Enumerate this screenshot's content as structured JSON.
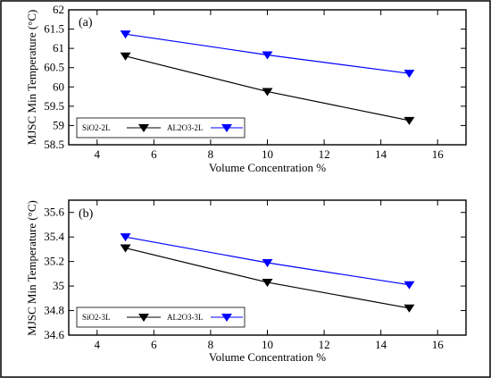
{
  "chart_data": [
    {
      "type": "line",
      "panel_label": "(a)",
      "xlabel": "Volume Concentration %",
      "ylabel": "MJSC Min Temperature (°C)",
      "xlim": [
        3,
        17
      ],
      "ylim": [
        58.5,
        62
      ],
      "xticks": [
        4,
        6,
        8,
        10,
        12,
        14,
        16
      ],
      "yticks": [
        58.5,
        59,
        59.5,
        60,
        60.5,
        61,
        61.5,
        62
      ],
      "x": [
        5,
        10,
        15
      ],
      "series": [
        {
          "name": "SiO2-2L",
          "color": "#000000",
          "values": [
            60.8,
            59.88,
            59.13
          ]
        },
        {
          "name": "AL2O3-2L",
          "color": "#0000ff",
          "values": [
            61.37,
            60.83,
            60.35
          ]
        }
      ],
      "legend": "bottom-left"
    },
    {
      "type": "line",
      "panel_label": "(b)",
      "xlabel": "Volume Concentration %",
      "ylabel": "MJSC Min Temperature (°C)",
      "xlim": [
        3,
        17
      ],
      "ylim": [
        34.6,
        35.7
      ],
      "xticks": [
        4,
        6,
        8,
        10,
        12,
        14,
        16
      ],
      "yticks": [
        34.6,
        34.8,
        35,
        35.2,
        35.4,
        35.6
      ],
      "x": [
        5,
        10,
        15
      ],
      "series": [
        {
          "name": "SiO2-3L",
          "color": "#000000",
          "values": [
            35.31,
            35.03,
            34.82
          ]
        },
        {
          "name": "AL2O3-3L",
          "color": "#0000ff",
          "values": [
            35.4,
            35.19,
            35.01
          ]
        }
      ],
      "legend": "bottom-left"
    }
  ]
}
